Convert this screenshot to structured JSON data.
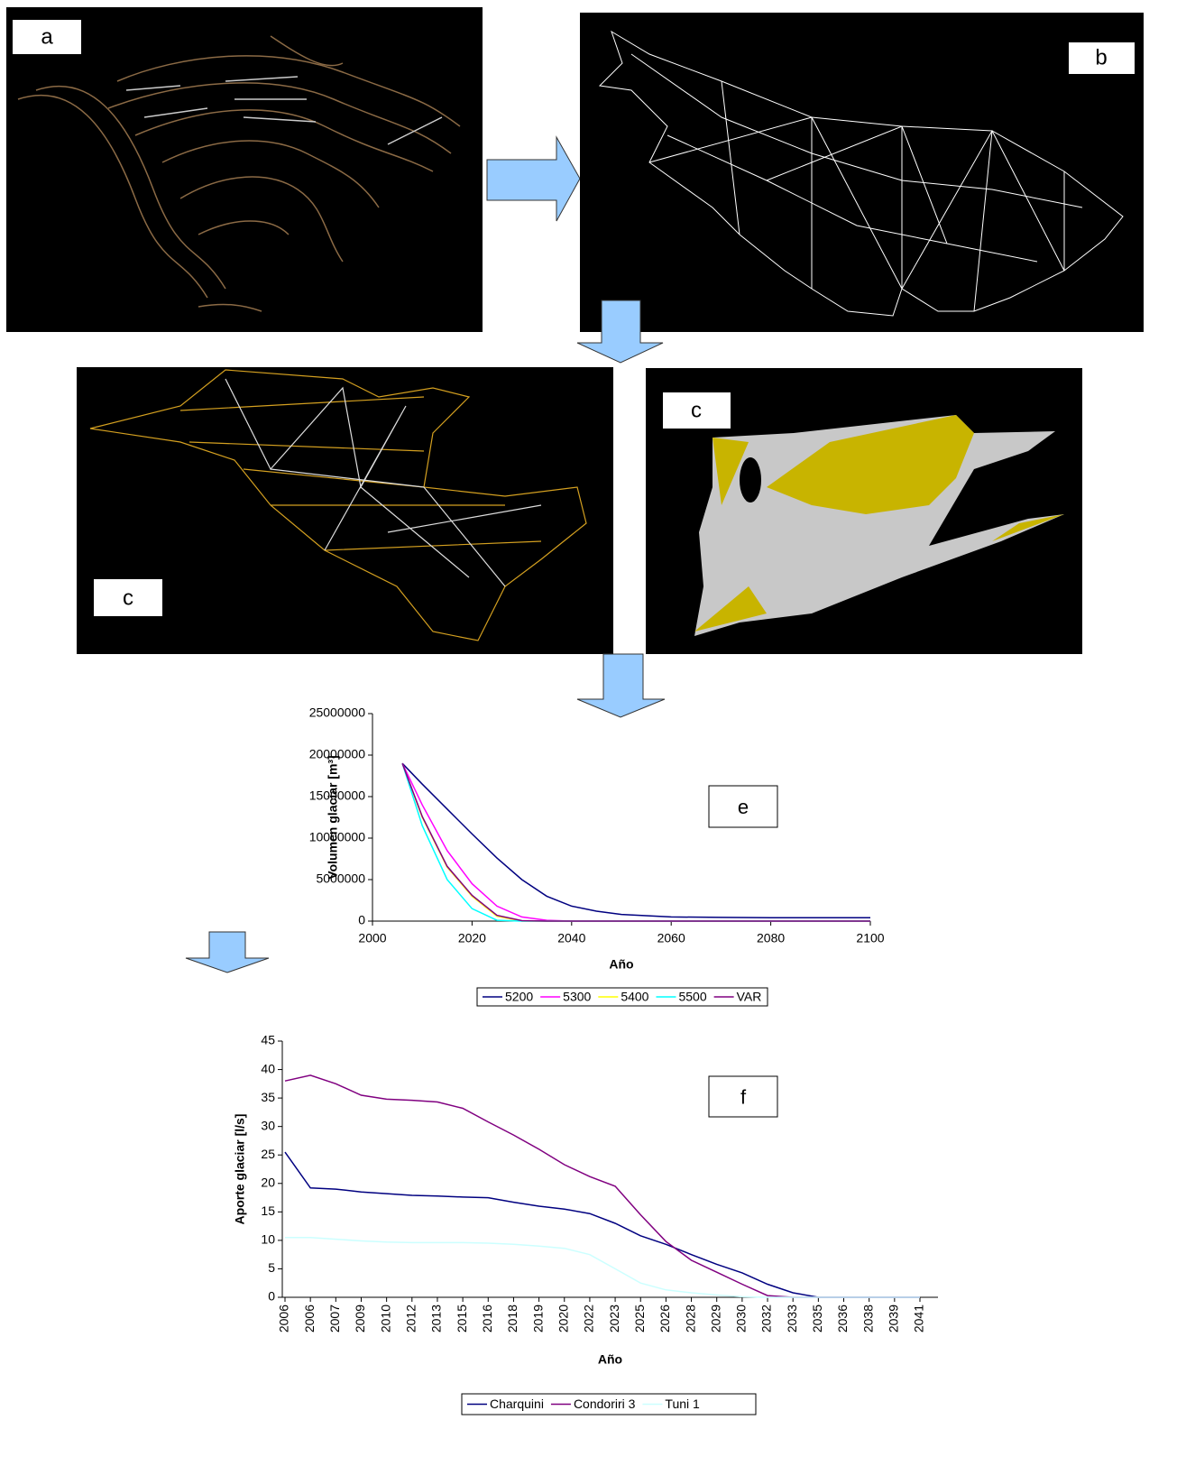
{
  "panels": {
    "labels": [
      "a",
      "b",
      "c",
      "c"
    ]
  },
  "chart_data": [
    {
      "type": "line",
      "annotation": "e",
      "x_label": "Año",
      "y_label": "Volumen glaciar [m³]",
      "x": [
        2006,
        2010,
        2015,
        2020,
        2025,
        2030,
        2035,
        2040,
        2045,
        2050,
        2060,
        2070,
        2080,
        2090,
        2100
      ],
      "xlim": [
        2000,
        2100
      ],
      "xticks": [
        2000,
        2020,
        2040,
        2060,
        2080,
        2100
      ],
      "ylim": [
        0,
        25000000
      ],
      "yticks": [
        0,
        5000000,
        10000000,
        15000000,
        20000000,
        25000000
      ],
      "series": [
        {
          "name": "5200",
          "color": "#000080",
          "values": [
            19000000,
            16500000,
            13500000,
            10500000,
            7600000,
            5000000,
            3000000,
            1800000,
            1200000,
            800000,
            500000,
            450000,
            400000,
            400000,
            400000
          ]
        },
        {
          "name": "5300",
          "color": "#ff00ff",
          "values": [
            19000000,
            14000000,
            8500000,
            4500000,
            1800000,
            500000,
            100000,
            0,
            0,
            0,
            0,
            0,
            0,
            0,
            0
          ]
        },
        {
          "name": "5400",
          "color": "#ffff00",
          "values": [
            19000000,
            12500000,
            6500000,
            3000000,
            600000,
            0,
            0,
            0,
            0,
            0,
            0,
            0,
            0,
            0,
            0
          ]
        },
        {
          "name": "5500",
          "color": "#00ffff",
          "values": [
            19000000,
            11500000,
            5000000,
            1500000,
            100000,
            0,
            0,
            0,
            0,
            0,
            0,
            0,
            0,
            0,
            0
          ]
        },
        {
          "name": "VAR",
          "color": "#800080",
          "values": [
            19000000,
            12600000,
            6600000,
            3100000,
            700000,
            50000,
            0,
            0,
            0,
            0,
            0,
            0,
            0,
            0,
            0
          ]
        }
      ]
    },
    {
      "type": "line",
      "annotation": "f",
      "x_label": "Año",
      "y_label": "Aporte glaciar [l/s]",
      "categories": [
        "2006",
        "2006",
        "2007",
        "2009",
        "2010",
        "2012",
        "2013",
        "2015",
        "2016",
        "2018",
        "2019",
        "2020",
        "2022",
        "2023",
        "2025",
        "2026",
        "2028",
        "2029",
        "2030",
        "2032",
        "2033",
        "2035",
        "2036",
        "2038",
        "2039",
        "2041"
      ],
      "ylim": [
        0,
        45
      ],
      "yticks": [
        0,
        5,
        10,
        15,
        20,
        25,
        30,
        35,
        40,
        45
      ],
      "series": [
        {
          "name": "Charquini",
          "color": "#000080",
          "values": [
            25.5,
            19.2,
            19.0,
            18.5,
            18.2,
            17.9,
            17.8,
            17.6,
            17.5,
            16.7,
            16.0,
            15.5,
            14.7,
            13.0,
            10.8,
            9.3,
            7.5,
            5.8,
            4.3,
            2.3,
            0.8,
            0,
            0,
            0,
            0,
            0
          ]
        },
        {
          "name": "Condoriri 3",
          "color": "#800080",
          "values": [
            38,
            39,
            37.5,
            35.5,
            34.8,
            34.6,
            34.3,
            33.2,
            30.8,
            28.5,
            26.0,
            23.3,
            21.2,
            19.5,
            14.5,
            9.8,
            6.5,
            4.4,
            2.3,
            0.3,
            0,
            0,
            0,
            0,
            0,
            0
          ]
        },
        {
          "name": "Tuni 1",
          "color": "#ccffff",
          "values": [
            10.5,
            10.5,
            10.2,
            9.9,
            9.7,
            9.6,
            9.6,
            9.6,
            9.5,
            9.3,
            9.0,
            8.6,
            7.5,
            5.0,
            2.5,
            1.3,
            0.8,
            0.4,
            0.1,
            0,
            0,
            0,
            0,
            0,
            0,
            0
          ]
        }
      ]
    }
  ]
}
